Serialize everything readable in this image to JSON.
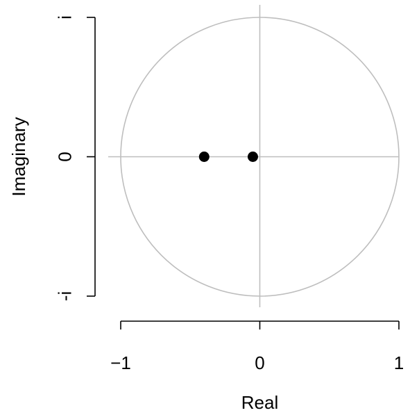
{
  "chart_data": {
    "type": "scatter",
    "title": "",
    "xlabel": "Real",
    "ylabel": "Imaginary",
    "xlim": [
      -1,
      1
    ],
    "ylim": [
      -1,
      1
    ],
    "x_ticks": [
      {
        "value": -1,
        "label": "−1"
      },
      {
        "value": 0,
        "label": "0"
      },
      {
        "value": 1,
        "label": "1"
      }
    ],
    "y_ticks": [
      {
        "value": -1,
        "label": "-i"
      },
      {
        "value": 0,
        "label": "0"
      },
      {
        "value": 1,
        "label": "i"
      }
    ],
    "unit_circle": true,
    "reference_lines": {
      "x": 0,
      "y": 0
    },
    "points": [
      {
        "x": -0.4,
        "y": 0
      },
      {
        "x": -0.05,
        "y": 0
      }
    ],
    "grid": false,
    "legend": "none",
    "colors": {
      "points": "#000000",
      "reference": "#bebebe",
      "axes": "#000000"
    }
  }
}
